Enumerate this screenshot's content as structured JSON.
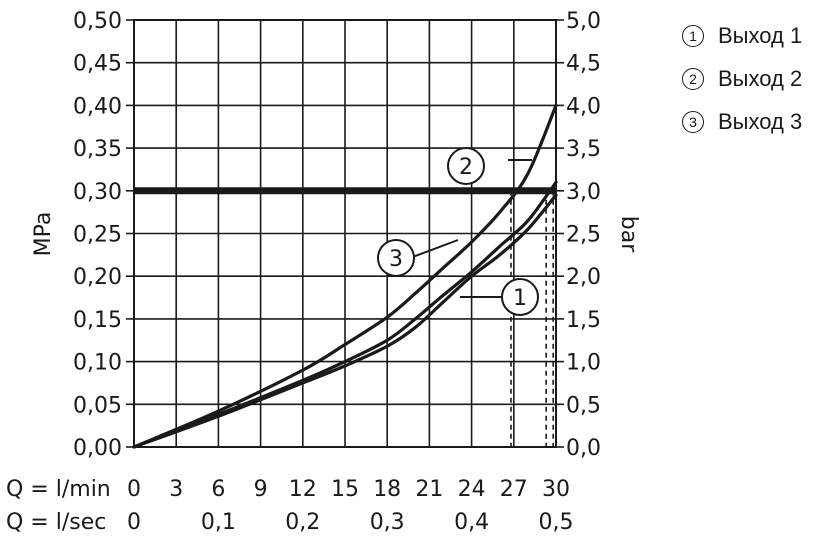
{
  "chart_data": {
    "type": "line",
    "ylabel_left": "MPa",
    "ylabel_right": "bar",
    "x_rows": [
      {
        "label": "Q = l/min",
        "ticks": [
          "0",
          "3",
          "6",
          "9",
          "12",
          "15",
          "18",
          "21",
          "24",
          "27",
          "30"
        ]
      },
      {
        "label": "Q = l/sec",
        "ticks": [
          "0",
          "0,1",
          "0,2",
          "0,3",
          "0,4",
          "0,5"
        ]
      }
    ],
    "xlim": [
      0,
      30
    ],
    "ylim": [
      0,
      0.5
    ],
    "y_ticks_left": [
      "0,00",
      "0,05",
      "0,10",
      "0,15",
      "0,20",
      "0,25",
      "0,30",
      "0,35",
      "0,40",
      "0,45",
      "0,50"
    ],
    "y_ticks_right": [
      "0,0",
      "0,5",
      "1,0",
      "1,5",
      "2,0",
      "2,5",
      "3,0",
      "3,5",
      "4,0",
      "4,5",
      "5,0"
    ],
    "grid": true,
    "reference_line": {
      "y": 0.3
    },
    "series": [
      {
        "name": "1",
        "x": [
          0,
          6,
          12,
          15,
          18,
          20,
          22,
          24,
          26,
          28,
          30
        ],
        "y": [
          0,
          0.036,
          0.075,
          0.095,
          0.118,
          0.14,
          0.17,
          0.2,
          0.225,
          0.255,
          0.295
        ],
        "drop_x": 29.3
      },
      {
        "name": "2",
        "x": [
          0,
          6,
          12,
          15,
          18,
          20,
          22,
          24,
          26,
          28,
          30
        ],
        "y": [
          0,
          0.042,
          0.09,
          0.12,
          0.152,
          0.18,
          0.21,
          0.24,
          0.275,
          0.32,
          0.4
        ],
        "drop_x": 26.8
      },
      {
        "name": "3",
        "x": [
          0,
          6,
          12,
          15,
          18,
          20,
          22,
          24,
          26,
          28,
          30
        ],
        "y": [
          0,
          0.038,
          0.078,
          0.1,
          0.125,
          0.15,
          0.178,
          0.205,
          0.235,
          0.265,
          0.31
        ],
        "drop_x": 29.8
      }
    ],
    "callouts": [
      "1",
      "2",
      "3"
    ]
  },
  "legend": [
    {
      "num": "1",
      "label": "Выход 1"
    },
    {
      "num": "2",
      "label": "Выход 2"
    },
    {
      "num": "3",
      "label": "Выход 3"
    }
  ]
}
